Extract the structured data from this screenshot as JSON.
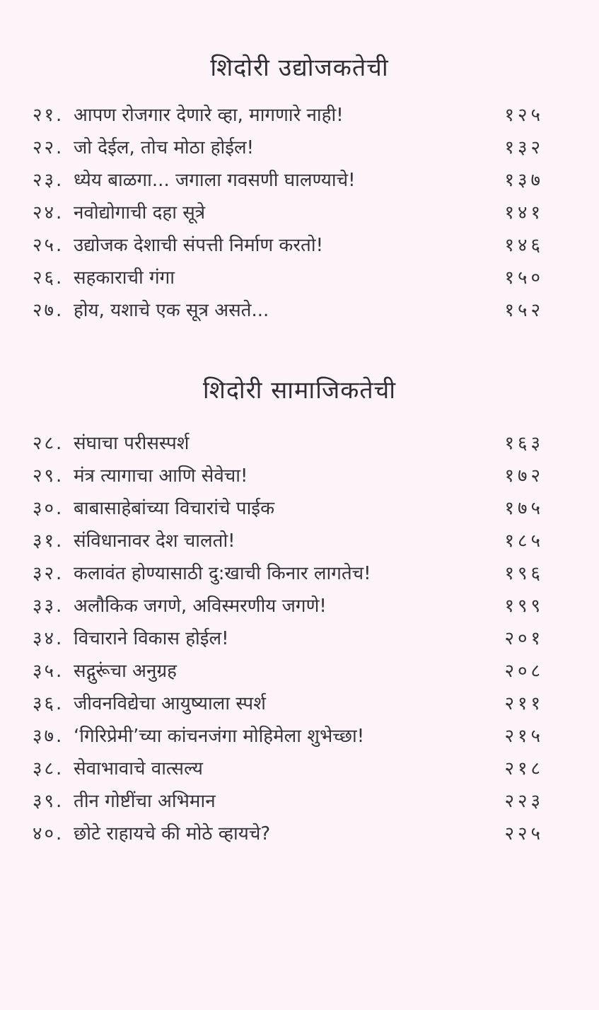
{
  "page": {
    "background_color": "#fcf4f9",
    "text_color": "#35333a"
  },
  "sections": [
    {
      "title": "शिदोरी उद्योजकतेची",
      "items": [
        {
          "no": "२१.",
          "title": "आपण रोजगार देणारे व्हा, मागणारे नाही!",
          "page": "१२५"
        },
        {
          "no": "२२.",
          "title": "जो देईल, तोच मोठा होईल!",
          "page": "१३२"
        },
        {
          "no": "२३.",
          "title": "ध्येय बाळगा... जगाला गवसणी घालण्याचे!",
          "page": "१३७"
        },
        {
          "no": "२४.",
          "title": "नवोद्योगाची दहा सूत्रे",
          "page": "१४१"
        },
        {
          "no": "२५.",
          "title": "उद्योजक देशाची संपत्ती निर्माण करतो!",
          "page": "१४६"
        },
        {
          "no": "२६.",
          "title": "सहकाराची गंगा",
          "page": "१५०"
        },
        {
          "no": "२७.",
          "title": "होय, यशाचे एक सूत्र असते...",
          "page": "१५२"
        }
      ]
    },
    {
      "title": "शिदोरी सामाजिकतेची",
      "items": [
        {
          "no": "२८.",
          "title": "संघाचा परीसस्पर्श",
          "page": "१६३"
        },
        {
          "no": "२९.",
          "title": "मंत्र त्यागाचा आणि सेवेचा!",
          "page": "१७२"
        },
        {
          "no": "३०.",
          "title": "बाबासाहेबांच्या विचारांचे पाईक",
          "page": "१७५"
        },
        {
          "no": "३१.",
          "title": "संविधानावर देश चालतो!",
          "page": "१८५"
        },
        {
          "no": "३२.",
          "title": "कलावंत होण्यासाठी दु:खाची किनार लागतेच!",
          "page": "१९६"
        },
        {
          "no": "३३.",
          "title": "अलौकिक जगणे, अविस्मरणीय जगणे!",
          "page": "१९९"
        },
        {
          "no": "३४.",
          "title": "विचाराने विकास होईल!",
          "page": "२०१"
        },
        {
          "no": "३५.",
          "title": "सद्गुरूंचा अनुग्रह",
          "page": "२०८"
        },
        {
          "no": "३६.",
          "title": "जीवनविद्येचा आयुष्याला स्पर्श",
          "page": "२११"
        },
        {
          "no": "३७.",
          "title": "‘गिरिप्रेमी’च्या कांचनजंगा मोहिमेला शुभेच्छा!",
          "page": "२१५"
        },
        {
          "no": "३८.",
          "title": "सेवाभावाचे वात्सल्य",
          "page": "२१८"
        },
        {
          "no": "३९.",
          "title": "तीन गोष्टींचा अभिमान",
          "page": "२२३"
        },
        {
          "no": "४०.",
          "title": "छोटे राहायचे की मोठे व्हायचे?",
          "page": "२२५"
        }
      ]
    }
  ]
}
